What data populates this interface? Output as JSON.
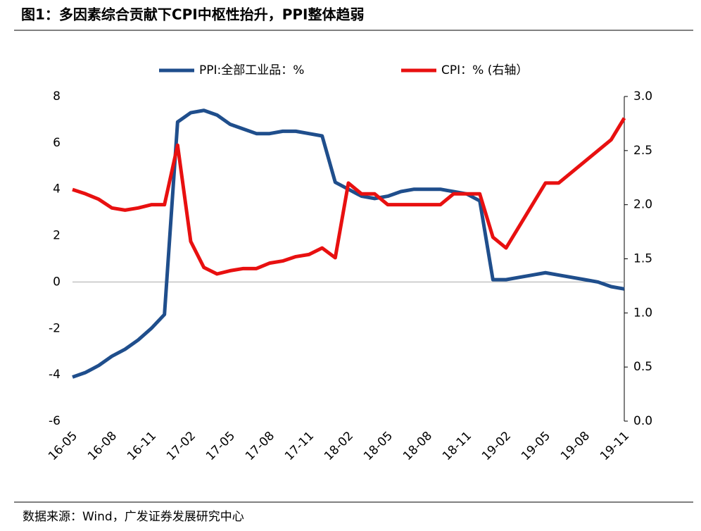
{
  "chart_data": {
    "type": "line",
    "title": "图1：多因素综合贡献下CPI中枢性抬升，PPI整体趋弱",
    "source": "数据来源：Wind，广发证券发展研究中心",
    "categories": [
      "16-05",
      null,
      null,
      "16-08",
      null,
      null,
      "16-11",
      null,
      null,
      "17-02",
      null,
      null,
      "17-05",
      null,
      null,
      "17-08",
      null,
      null,
      "17-11",
      null,
      null,
      "18-02",
      null,
      null,
      "18-05",
      null,
      null,
      "18-08",
      null,
      null,
      "18-11",
      null,
      null,
      "19-02",
      null,
      null,
      "19-05",
      null,
      null,
      "19-08",
      null,
      null,
      "19-11"
    ],
    "series": [
      {
        "name": "PPI:全部工业品：%",
        "color": "#1f4e8c",
        "axis": "y",
        "values": [
          -4.1,
          -3.9,
          -3.6,
          -3.2,
          -2.9,
          -2.5,
          -2.0,
          -1.4,
          6.9,
          7.3,
          7.4,
          7.2,
          6.8,
          6.6,
          6.4,
          6.4,
          6.5,
          6.5,
          6.4,
          6.3,
          4.3,
          4.0,
          3.7,
          3.6,
          3.7,
          3.9,
          4.0,
          4.0,
          4.0,
          3.9,
          3.8,
          3.5,
          0.1,
          0.1,
          0.2,
          0.3,
          0.4,
          0.3,
          0.2,
          0.1,
          0.0,
          -0.2,
          -0.3
        ]
      },
      {
        "name": "CPI：% (右轴）",
        "color": "#e81010",
        "axis": "y2",
        "values": [
          2.14,
          2.1,
          2.05,
          1.97,
          1.95,
          1.97,
          2.0,
          2.0,
          2.55,
          1.66,
          1.42,
          1.36,
          1.39,
          1.41,
          1.41,
          1.46,
          1.48,
          1.52,
          1.54,
          1.6,
          1.51,
          2.2,
          2.1,
          2.1,
          2.0,
          2.0,
          2.0,
          2.0,
          2.0,
          2.1,
          2.1,
          2.1,
          1.7,
          1.6,
          1.8,
          2.0,
          2.2,
          2.2,
          2.3,
          2.4,
          2.5,
          2.6,
          2.8
        ]
      }
    ],
    "ylim": [
      -6,
      8
    ],
    "yticks": [
      -6,
      -4,
      -2,
      0,
      2,
      4,
      6,
      8
    ],
    "y2lim": [
      0,
      3
    ],
    "y2ticks": [
      {
        "value": 0,
        "label": "0.0"
      },
      {
        "value": 0.5,
        "label": "0.5"
      },
      {
        "value": 1,
        "label": "1.0"
      },
      {
        "value": 1.5,
        "label": "1.5"
      },
      {
        "value": 2,
        "label": "2.0"
      },
      {
        "value": 2.5,
        "label": "2.5"
      },
      {
        "value": 3,
        "label": "3.0"
      }
    ],
    "legend": "top"
  }
}
